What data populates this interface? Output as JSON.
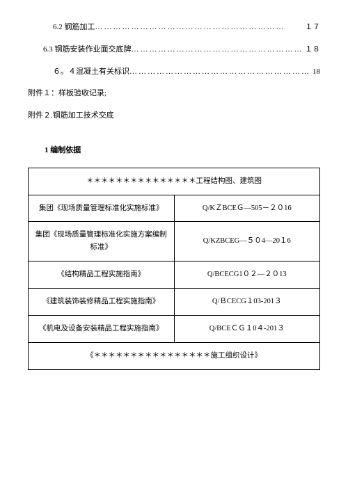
{
  "toc": {
    "item1": {
      "text": "6.2 钢筋加工",
      "page": "１７"
    },
    "item2": {
      "text": "6.3 钢筋安装作业面交底牌",
      "page": "１８"
    },
    "item3": {
      "text": "６。４混凝土有关标识",
      "page": "18"
    }
  },
  "annex": {
    "a1": "附件１：样板验收记录;",
    "a2": "附件２.钢筋加工技术交底"
  },
  "heading": "1 编制依据",
  "table": {
    "row1": {
      "left": "＊＊＊＊＊＊＊＊＊＊＊＊＊＊＊工程结构图、建筑图"
    },
    "row2": {
      "left": "集团《现场质量管理标准化实施标准》",
      "right": "Q/KＺBCEＧ—505－２０16"
    },
    "row3": {
      "left": "集团《现场质量管理标准化实施方案编制标准》",
      "right": "Q/KZBCEG—５０4—20１6"
    },
    "row4": {
      "left": "《结构精品工程实施指南》",
      "right": "Q/BCECG1０２—２０13"
    },
    "row5": {
      "left": "《建筑装饰装修精品工程实施指南》",
      "right": "Q/ＢCECG１03-201３"
    },
    "row6": {
      "left": "《机电及设备安装精品工程实施指南》",
      "right": "Q/BCEＣＧ１0４-201３"
    },
    "row7": {
      "left": "《＊＊＊＊＊＊＊＊＊＊＊＊＊＊＊＊施工组织设计》"
    }
  },
  "dots": "………………………………………………………"
}
